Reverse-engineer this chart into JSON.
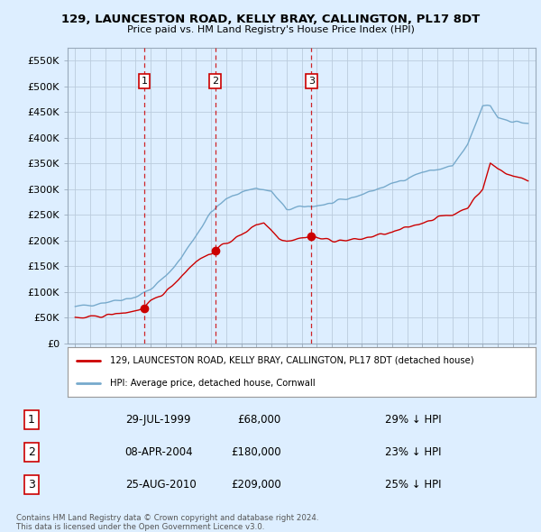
{
  "title": "129, LAUNCESTON ROAD, KELLY BRAY, CALLINGTON, PL17 8DT",
  "subtitle": "Price paid vs. HM Land Registry's House Price Index (HPI)",
  "ylim": [
    0,
    575000
  ],
  "xlim_start": 1994.5,
  "xlim_end": 2025.5,
  "transactions": [
    {
      "num": 1,
      "year": 1999.58,
      "price": 68000,
      "label": "29-JUL-1999",
      "price_str": "£68,000",
      "hpi_str": "29% ↓ HPI"
    },
    {
      "num": 2,
      "year": 2004.27,
      "price": 180000,
      "label": "08-APR-2004",
      "price_str": "£180,000",
      "hpi_str": "23% ↓ HPI"
    },
    {
      "num": 3,
      "year": 2010.65,
      "price": 209000,
      "label": "25-AUG-2010",
      "price_str": "£209,000",
      "hpi_str": "25% ↓ HPI"
    }
  ],
  "legend_line1": "129, LAUNCESTON ROAD, KELLY BRAY, CALLINGTON, PL17 8DT (detached house)",
  "legend_line2": "HPI: Average price, detached house, Cornwall",
  "footer1": "Contains HM Land Registry data © Crown copyright and database right 2024.",
  "footer2": "This data is licensed under the Open Government Licence v3.0.",
  "red_color": "#cc0000",
  "blue_color": "#77aacc",
  "bg_color": "#ddeeff",
  "plot_bg": "#ddeeff",
  "grid_color": "#bbccdd",
  "marker_box_color": "#cc0000",
  "hpi_anchor_years": [
    1995,
    1996,
    1997,
    1998,
    1999,
    2000,
    2001,
    2002,
    2003,
    2004,
    2005,
    2006,
    2007,
    2008,
    2009,
    2010,
    2011,
    2012,
    2013,
    2014,
    2015,
    2016,
    2017,
    2018,
    2019,
    2020,
    2021,
    2022,
    2022.5,
    2023,
    2024,
    2025
  ],
  "hpi_anchor_vals": [
    70000,
    75000,
    80000,
    85000,
    90000,
    105000,
    130000,
    165000,
    210000,
    255000,
    280000,
    295000,
    302000,
    295000,
    260000,
    265000,
    268000,
    272000,
    280000,
    290000,
    300000,
    310000,
    322000,
    333000,
    338000,
    345000,
    385000,
    462000,
    462000,
    440000,
    432000,
    428000
  ],
  "red_anchor_years": [
    1995,
    1996,
    1997,
    1998,
    1999,
    1999.58,
    2000,
    2001,
    2002,
    2003,
    2004,
    2004.27,
    2005,
    2006,
    2007,
    2007.5,
    2008,
    2008.5,
    2009,
    2010,
    2010.65,
    2011,
    2012,
    2013,
    2014,
    2015,
    2016,
    2017,
    2018,
    2019,
    2020,
    2021,
    2022,
    2022.5,
    2023,
    2024,
    2025
  ],
  "red_anchor_vals": [
    48000,
    50000,
    54000,
    58000,
    63000,
    68000,
    80000,
    100000,
    130000,
    160000,
    175000,
    180000,
    195000,
    210000,
    232000,
    235000,
    220000,
    205000,
    200000,
    205000,
    209000,
    205000,
    200000,
    200000,
    203000,
    210000,
    215000,
    225000,
    235000,
    245000,
    250000,
    265000,
    300000,
    350000,
    340000,
    325000,
    318000
  ]
}
